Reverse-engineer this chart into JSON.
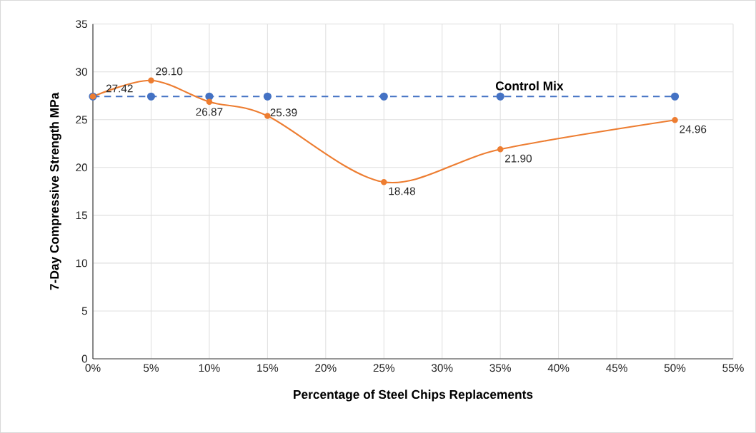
{
  "chart_data": {
    "type": "line",
    "xlabel": "Percentage of Steel Chips Replacements",
    "ylabel": "7-Day Compressive Strength MPa",
    "x": [
      0,
      5,
      10,
      15,
      25,
      35,
      50
    ],
    "series": [
      {
        "name": "Control Mix",
        "color": "#4472c4",
        "line_style": "dashed",
        "values": [
          27.42,
          27.42,
          27.42,
          27.42,
          27.42,
          27.42,
          27.42
        ]
      },
      {
        "color": "#ed7d31",
        "line_style": "solid",
        "values": [
          27.42,
          29.1,
          26.87,
          25.39,
          18.48,
          21.9,
          24.96
        ],
        "value_labels": [
          "27.42",
          "29.10",
          "26.87",
          "25.39",
          "18.48",
          "21.90",
          "24.96"
        ]
      }
    ],
    "xlim": [
      0,
      55
    ],
    "xticks": [
      {
        "value": 0,
        "label": "0%"
      },
      {
        "value": 5,
        "label": "5%"
      },
      {
        "value": 10,
        "label": "10%"
      },
      {
        "value": 15,
        "label": "15%"
      },
      {
        "value": 20,
        "label": "20%"
      },
      {
        "value": 25,
        "label": "25%"
      },
      {
        "value": 30,
        "label": "30%"
      },
      {
        "value": 35,
        "label": "35%"
      },
      {
        "value": 40,
        "label": "40%"
      },
      {
        "value": 45,
        "label": "45%"
      },
      {
        "value": 50,
        "label": "50%"
      },
      {
        "value": 55,
        "label": "55%"
      }
    ],
    "ylim": [
      0,
      35
    ],
    "yticks": [
      0,
      5,
      10,
      15,
      20,
      25,
      30,
      35
    ],
    "grid": true,
    "legend": false,
    "marker": "circle"
  }
}
